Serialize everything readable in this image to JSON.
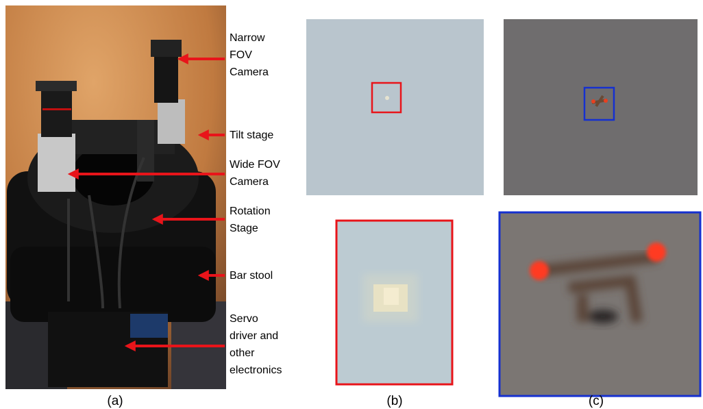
{
  "annotations": [
    {
      "lines": [
        "Narrow",
        "FOV",
        "Camera"
      ]
    },
    {
      "lines": [
        "Tilt stage"
      ]
    },
    {
      "lines": [
        "Wide FOV",
        "Camera"
      ]
    },
    {
      "lines": [
        "Rotation",
        "Stage"
      ]
    },
    {
      "lines": [
        "Bar stool"
      ]
    },
    {
      "lines": [
        "Servo",
        "driver and",
        "other",
        "electronics"
      ]
    }
  ],
  "captions": [
    "(a)",
    "(b)",
    "(c)"
  ]
}
